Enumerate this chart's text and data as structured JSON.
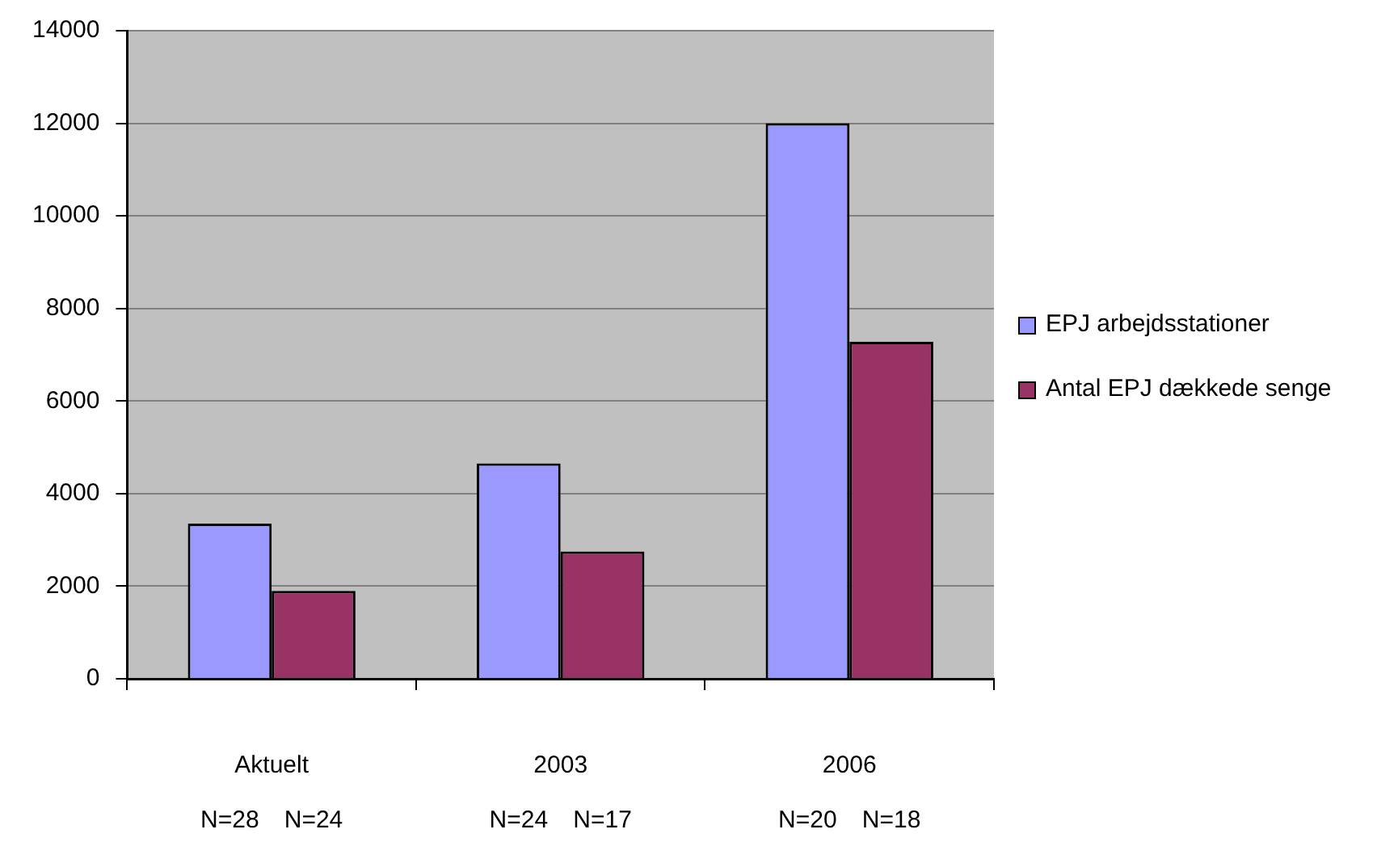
{
  "chart_data": {
    "type": "bar",
    "categories": [
      "Aktuelt",
      "2003",
      "2006"
    ],
    "series": [
      {
        "name": "EPJ arbejdsstationer",
        "color": "#9999ff",
        "values": [
          3350,
          4650,
          12000
        ]
      },
      {
        "name": "Antal EPJ dækkede senge",
        "color": "#993366",
        "values": [
          1900,
          2750,
          7280
        ]
      }
    ],
    "ylim": [
      0,
      14000
    ],
    "yticks": [
      0,
      2000,
      4000,
      6000,
      8000,
      10000,
      12000,
      14000
    ],
    "grid": "y",
    "legend": "right",
    "annotations": [
      "N=28",
      "N=24",
      "N=24",
      "N=17",
      "N=20",
      "N=18"
    ]
  }
}
